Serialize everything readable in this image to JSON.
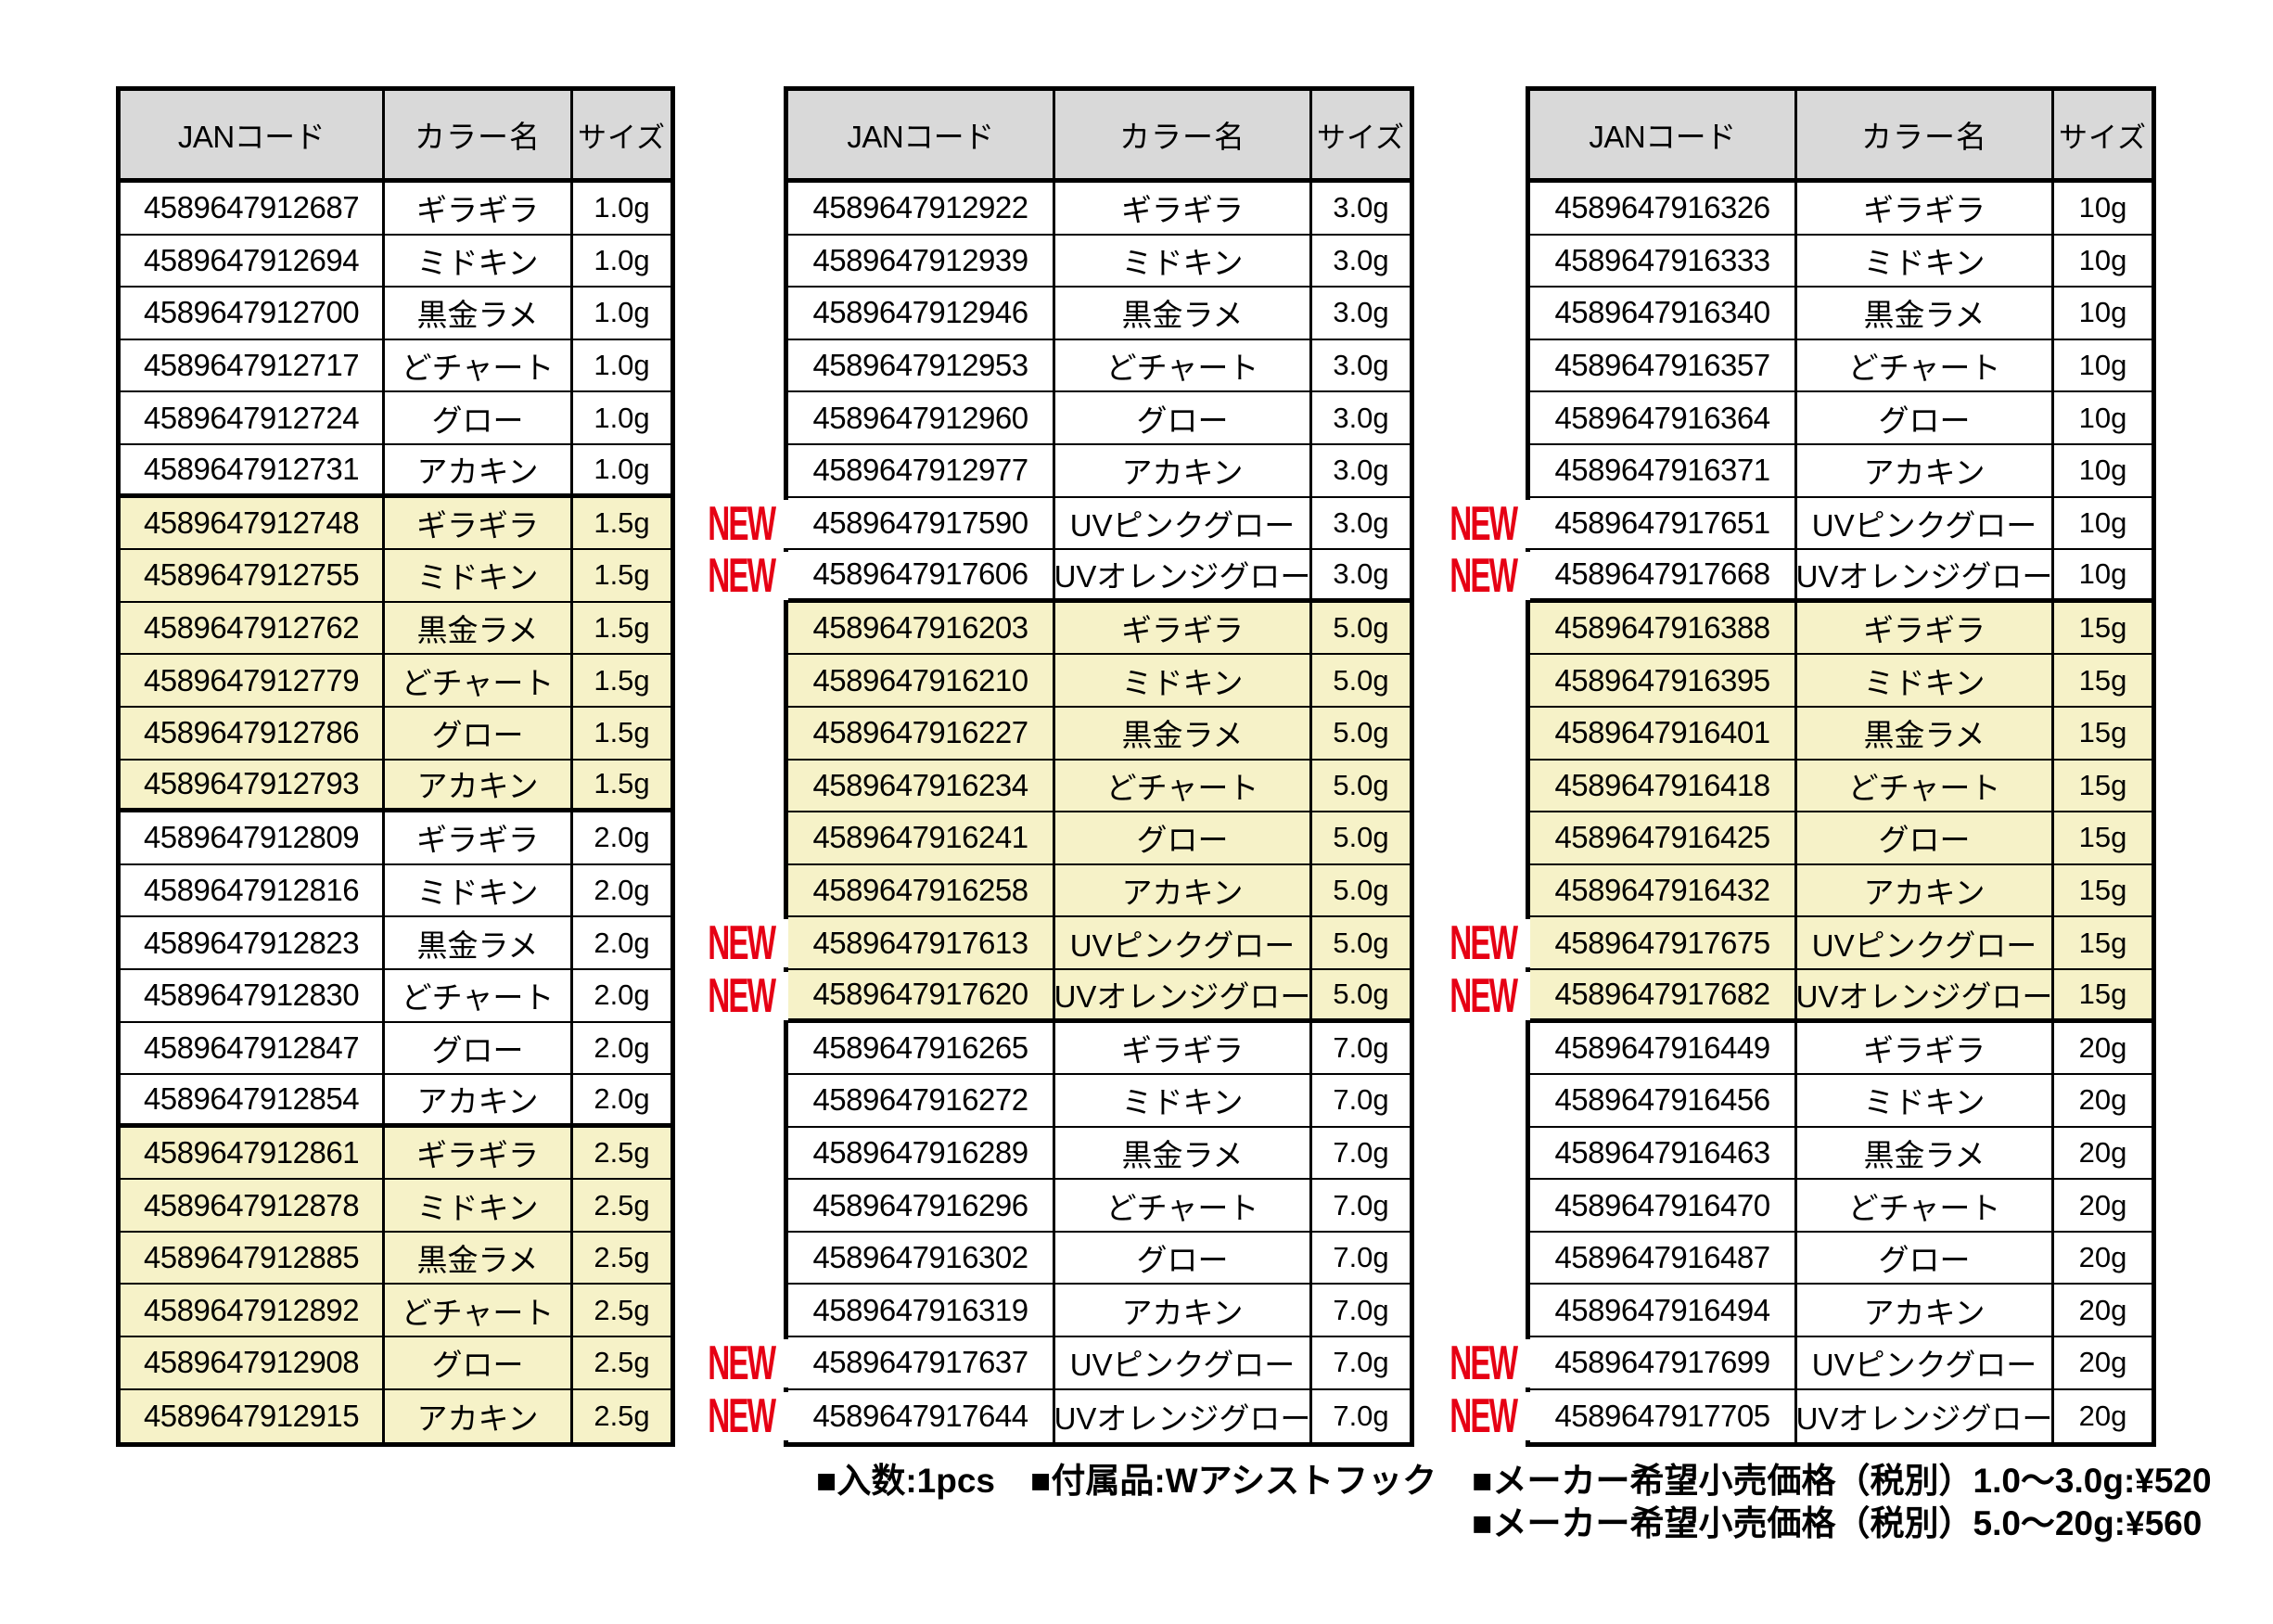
{
  "colors": {
    "accent_red": "#e60014",
    "row_highlight": "#f6f2c8",
    "header_bg": "#d9d9d9",
    "border": "#000000"
  },
  "new_badge_label": "NEW",
  "tables": [
    {
      "id": "sizes-1.0g-2.5g",
      "group_size": 6,
      "headers": {
        "jan": "JANコード",
        "color": "カラー名",
        "size": "サイズ"
      },
      "rows": [
        {
          "jan": "4589647912687",
          "color": "ギラギラ",
          "size": "1.0g",
          "highlight": false,
          "new": false
        },
        {
          "jan": "4589647912694",
          "color": "ミドキン",
          "size": "1.0g",
          "highlight": false,
          "new": false
        },
        {
          "jan": "4589647912700",
          "color": "黒金ラメ",
          "size": "1.0g",
          "highlight": false,
          "new": false
        },
        {
          "jan": "4589647912717",
          "color": "どチャート",
          "size": "1.0g",
          "highlight": false,
          "new": false
        },
        {
          "jan": "4589647912724",
          "color": "グロー",
          "size": "1.0g",
          "highlight": false,
          "new": false
        },
        {
          "jan": "4589647912731",
          "color": "アカキン",
          "size": "1.0g",
          "highlight": false,
          "new": false
        },
        {
          "jan": "4589647912748",
          "color": "ギラギラ",
          "size": "1.5g",
          "highlight": true,
          "new": false
        },
        {
          "jan": "4589647912755",
          "color": "ミドキン",
          "size": "1.5g",
          "highlight": true,
          "new": false
        },
        {
          "jan": "4589647912762",
          "color": "黒金ラメ",
          "size": "1.5g",
          "highlight": true,
          "new": false
        },
        {
          "jan": "4589647912779",
          "color": "どチャート",
          "size": "1.5g",
          "highlight": true,
          "new": false
        },
        {
          "jan": "4589647912786",
          "color": "グロー",
          "size": "1.5g",
          "highlight": true,
          "new": false
        },
        {
          "jan": "4589647912793",
          "color": "アカキン",
          "size": "1.5g",
          "highlight": true,
          "new": false
        },
        {
          "jan": "4589647912809",
          "color": "ギラギラ",
          "size": "2.0g",
          "highlight": false,
          "new": false
        },
        {
          "jan": "4589647912816",
          "color": "ミドキン",
          "size": "2.0g",
          "highlight": false,
          "new": false
        },
        {
          "jan": "4589647912823",
          "color": "黒金ラメ",
          "size": "2.0g",
          "highlight": false,
          "new": false
        },
        {
          "jan": "4589647912830",
          "color": "どチャート",
          "size": "2.0g",
          "highlight": false,
          "new": false
        },
        {
          "jan": "4589647912847",
          "color": "グロー",
          "size": "2.0g",
          "highlight": false,
          "new": false
        },
        {
          "jan": "4589647912854",
          "color": "アカキン",
          "size": "2.0g",
          "highlight": false,
          "new": false
        },
        {
          "jan": "4589647912861",
          "color": "ギラギラ",
          "size": "2.5g",
          "highlight": true,
          "new": false
        },
        {
          "jan": "4589647912878",
          "color": "ミドキン",
          "size": "2.5g",
          "highlight": true,
          "new": false
        },
        {
          "jan": "4589647912885",
          "color": "黒金ラメ",
          "size": "2.5g",
          "highlight": true,
          "new": false
        },
        {
          "jan": "4589647912892",
          "color": "どチャート",
          "size": "2.5g",
          "highlight": true,
          "new": false
        },
        {
          "jan": "4589647912908",
          "color": "グロー",
          "size": "2.5g",
          "highlight": true,
          "new": false
        },
        {
          "jan": "4589647912915",
          "color": "アカキン",
          "size": "2.5g",
          "highlight": true,
          "new": false
        }
      ]
    },
    {
      "id": "sizes-3.0g-7.0g",
      "group_size": 8,
      "headers": {
        "jan": "JANコード",
        "color": "カラー名",
        "size": "サイズ"
      },
      "rows": [
        {
          "jan": "4589647912922",
          "color": "ギラギラ",
          "size": "3.0g",
          "highlight": false,
          "new": false
        },
        {
          "jan": "4589647912939",
          "color": "ミドキン",
          "size": "3.0g",
          "highlight": false,
          "new": false
        },
        {
          "jan": "4589647912946",
          "color": "黒金ラメ",
          "size": "3.0g",
          "highlight": false,
          "new": false
        },
        {
          "jan": "4589647912953",
          "color": "どチャート",
          "size": "3.0g",
          "highlight": false,
          "new": false
        },
        {
          "jan": "4589647912960",
          "color": "グロー",
          "size": "3.0g",
          "highlight": false,
          "new": false
        },
        {
          "jan": "4589647912977",
          "color": "アカキン",
          "size": "3.0g",
          "highlight": false,
          "new": false
        },
        {
          "jan": "4589647917590",
          "color": "UVピンクグロー",
          "size": "3.0g",
          "highlight": false,
          "new": true
        },
        {
          "jan": "4589647917606",
          "color": "UVオレンジグロー",
          "size": "3.0g",
          "highlight": false,
          "new": true
        },
        {
          "jan": "4589647916203",
          "color": "ギラギラ",
          "size": "5.0g",
          "highlight": true,
          "new": false
        },
        {
          "jan": "4589647916210",
          "color": "ミドキン",
          "size": "5.0g",
          "highlight": true,
          "new": false
        },
        {
          "jan": "4589647916227",
          "color": "黒金ラメ",
          "size": "5.0g",
          "highlight": true,
          "new": false
        },
        {
          "jan": "4589647916234",
          "color": "どチャート",
          "size": "5.0g",
          "highlight": true,
          "new": false
        },
        {
          "jan": "4589647916241",
          "color": "グロー",
          "size": "5.0g",
          "highlight": true,
          "new": false
        },
        {
          "jan": "4589647916258",
          "color": "アカキン",
          "size": "5.0g",
          "highlight": true,
          "new": false
        },
        {
          "jan": "4589647917613",
          "color": "UVピンクグロー",
          "size": "5.0g",
          "highlight": true,
          "new": true
        },
        {
          "jan": "4589647917620",
          "color": "UVオレンジグロー",
          "size": "5.0g",
          "highlight": true,
          "new": true
        },
        {
          "jan": "4589647916265",
          "color": "ギラギラ",
          "size": "7.0g",
          "highlight": false,
          "new": false
        },
        {
          "jan": "4589647916272",
          "color": "ミドキン",
          "size": "7.0g",
          "highlight": false,
          "new": false
        },
        {
          "jan": "4589647916289",
          "color": "黒金ラメ",
          "size": "7.0g",
          "highlight": false,
          "new": false
        },
        {
          "jan": "4589647916296",
          "color": "どチャート",
          "size": "7.0g",
          "highlight": false,
          "new": false
        },
        {
          "jan": "4589647916302",
          "color": "グロー",
          "size": "7.0g",
          "highlight": false,
          "new": false
        },
        {
          "jan": "4589647916319",
          "color": "アカキン",
          "size": "7.0g",
          "highlight": false,
          "new": false
        },
        {
          "jan": "4589647917637",
          "color": "UVピンクグロー",
          "size": "7.0g",
          "highlight": false,
          "new": true
        },
        {
          "jan": "4589647917644",
          "color": "UVオレンジグロー",
          "size": "7.0g",
          "highlight": false,
          "new": true
        }
      ]
    },
    {
      "id": "sizes-10g-20g",
      "group_size": 8,
      "headers": {
        "jan": "JANコード",
        "color": "カラー名",
        "size": "サイズ"
      },
      "rows": [
        {
          "jan": "4589647916326",
          "color": "ギラギラ",
          "size": "10g",
          "highlight": false,
          "new": false
        },
        {
          "jan": "4589647916333",
          "color": "ミドキン",
          "size": "10g",
          "highlight": false,
          "new": false
        },
        {
          "jan": "4589647916340",
          "color": "黒金ラメ",
          "size": "10g",
          "highlight": false,
          "new": false
        },
        {
          "jan": "4589647916357",
          "color": "どチャート",
          "size": "10g",
          "highlight": false,
          "new": false
        },
        {
          "jan": "4589647916364",
          "color": "グロー",
          "size": "10g",
          "highlight": false,
          "new": false
        },
        {
          "jan": "4589647916371",
          "color": "アカキン",
          "size": "10g",
          "highlight": false,
          "new": false
        },
        {
          "jan": "4589647917651",
          "color": "UVピンクグロー",
          "size": "10g",
          "highlight": false,
          "new": true
        },
        {
          "jan": "4589647917668",
          "color": "UVオレンジグロー",
          "size": "10g",
          "highlight": false,
          "new": true
        },
        {
          "jan": "4589647916388",
          "color": "ギラギラ",
          "size": "15g",
          "highlight": true,
          "new": false
        },
        {
          "jan": "4589647916395",
          "color": "ミドキン",
          "size": "15g",
          "highlight": true,
          "new": false
        },
        {
          "jan": "4589647916401",
          "color": "黒金ラメ",
          "size": "15g",
          "highlight": true,
          "new": false
        },
        {
          "jan": "4589647916418",
          "color": "どチャート",
          "size": "15g",
          "highlight": true,
          "new": false
        },
        {
          "jan": "4589647916425",
          "color": "グロー",
          "size": "15g",
          "highlight": true,
          "new": false
        },
        {
          "jan": "4589647916432",
          "color": "アカキン",
          "size": "15g",
          "highlight": true,
          "new": false
        },
        {
          "jan": "4589647917675",
          "color": "UVピンクグロー",
          "size": "15g",
          "highlight": true,
          "new": true
        },
        {
          "jan": "4589647917682",
          "color": "UVオレンジグロー",
          "size": "15g",
          "highlight": true,
          "new": true
        },
        {
          "jan": "4589647916449",
          "color": "ギラギラ",
          "size": "20g",
          "highlight": false,
          "new": false
        },
        {
          "jan": "4589647916456",
          "color": "ミドキン",
          "size": "20g",
          "highlight": false,
          "new": false
        },
        {
          "jan": "4589647916463",
          "color": "黒金ラメ",
          "size": "20g",
          "highlight": false,
          "new": false
        },
        {
          "jan": "4589647916470",
          "color": "どチャート",
          "size": "20g",
          "highlight": false,
          "new": false
        },
        {
          "jan": "4589647916487",
          "color": "グロー",
          "size": "20g",
          "highlight": false,
          "new": false
        },
        {
          "jan": "4589647916494",
          "color": "アカキン",
          "size": "20g",
          "highlight": false,
          "new": false
        },
        {
          "jan": "4589647917699",
          "color": "UVピンクグロー",
          "size": "20g",
          "highlight": false,
          "new": true
        },
        {
          "jan": "4589647917705",
          "color": "UVオレンジグロー",
          "size": "20g",
          "highlight": false,
          "new": true
        }
      ]
    }
  ],
  "footer": {
    "line1": [
      "■入数:1pcs",
      "■付属品:Wアシストフック",
      "■メーカー希望小売価格（税別）1.0〜3.0g:¥520"
    ],
    "line2": "■メーカー希望小売価格（税別）5.0〜20g:¥560"
  }
}
